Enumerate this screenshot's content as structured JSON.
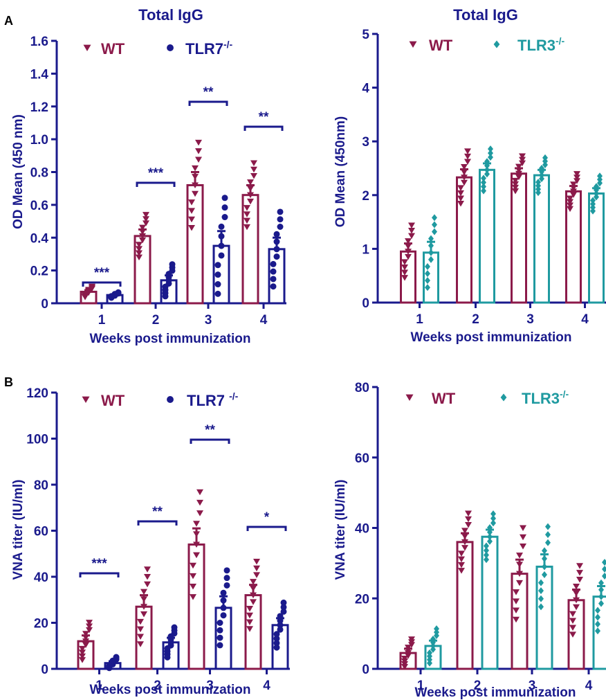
{
  "colors": {
    "axis": "#1a1a8c",
    "wt": "#8b1a4a",
    "tlr7": "#1a1a8c",
    "tlr3": "#1f9aa0"
  },
  "panel_labels": {
    "a": "A",
    "b": "B"
  },
  "chart_data": [
    {
      "type": "bar",
      "id": "a1",
      "title": "Total IgG",
      "xlabel": "Weeks post immunization",
      "ylabel": "OD Mean (450 nm)",
      "categories": [
        "1",
        "2",
        "3",
        "4"
      ],
      "ylim": [
        0,
        1.6
      ],
      "yticks": [
        "0",
        "0.2",
        "0.4",
        "0.6",
        "0.8",
        "1.0",
        "1.2",
        "1.4",
        "1.6"
      ],
      "legend": [
        {
          "label": "WT",
          "sup": "",
          "marker": "triangle"
        },
        {
          "label": "TLR7",
          "sup": "-/-",
          "marker": "circle"
        }
      ],
      "series": [
        {
          "name": "WT",
          "values": [
            0.07,
            0.41,
            0.72,
            0.66
          ],
          "sem": [
            0.01,
            0.04,
            0.08,
            0.06
          ]
        },
        {
          "name": "TLR7-/-",
          "values": [
            0.05,
            0.14,
            0.35,
            0.33
          ],
          "sem": [
            0.005,
            0.03,
            0.09,
            0.07
          ]
        }
      ],
      "significance": [
        "***",
        "***",
        "**",
        "**"
      ]
    },
    {
      "type": "bar",
      "id": "a2",
      "title": "Total IgG",
      "xlabel": "Weeks post immunization",
      "ylabel": "OD Mean (450nm)",
      "categories": [
        "1",
        "2",
        "3",
        "4"
      ],
      "ylim": [
        0,
        5
      ],
      "yticks": [
        "0",
        "1",
        "2",
        "3",
        "4",
        "5"
      ],
      "legend": [
        {
          "label": "WT",
          "sup": "",
          "marker": "triangle"
        },
        {
          "label": "TLR3",
          "sup": "-/-",
          "marker": "diamond"
        }
      ],
      "series": [
        {
          "name": "WT",
          "values": [
            0.95,
            2.33,
            2.4,
            2.07
          ],
          "sem": [
            0.15,
            0.15,
            0.1,
            0.1
          ]
        },
        {
          "name": "TLR3-/-",
          "values": [
            0.93,
            2.47,
            2.37,
            2.03
          ],
          "sem": [
            0.2,
            0.12,
            0.1,
            0.1
          ]
        }
      ],
      "significance": []
    },
    {
      "type": "bar",
      "id": "b1",
      "title": "",
      "xlabel": "Weeks post immunization",
      "ylabel": "VNA titer (IU/ml)",
      "categories": [
        "1",
        "2",
        "3",
        "4"
      ],
      "ylim": [
        0,
        120
      ],
      "yticks": [
        "0",
        "20",
        "40",
        "60",
        "80",
        "100",
        "120"
      ],
      "legend": [
        {
          "label": "WT",
          "sup": "",
          "marker": "triangle"
        },
        {
          "label": "TLR7 ",
          "sup": "-/-",
          "marker": "circle"
        }
      ],
      "series": [
        {
          "name": "WT",
          "values": [
            12,
            27,
            54,
            32
          ],
          "sem": [
            2.5,
            5,
            7,
            4.5
          ]
        },
        {
          "name": "TLR7-/-",
          "values": [
            2.5,
            11.5,
            26.5,
            19
          ],
          "sem": [
            0.8,
            2,
            5,
            3
          ]
        }
      ],
      "significance": [
        "***",
        "**",
        "**",
        "*"
      ]
    },
    {
      "type": "bar",
      "id": "b2",
      "title": "",
      "xlabel": "Weeks post immunization",
      "ylabel": "VNA titer (IU/ml)",
      "categories": [
        "1",
        "2",
        "3",
        "4"
      ],
      "ylim": [
        0,
        80
      ],
      "yticks": [
        "0",
        "20",
        "40",
        "60",
        "80"
      ],
      "legend": [
        {
          "label": "WT",
          "sup": "",
          "marker": "triangle"
        },
        {
          "label": "TLR3",
          "sup": "-/-",
          "marker": "diamond"
        }
      ],
      "series": [
        {
          "name": "WT",
          "values": [
            4.5,
            36,
            27,
            19.5
          ],
          "sem": [
            1.2,
            2.5,
            4,
            3
          ]
        },
        {
          "name": "TLR3-/-",
          "values": [
            6.5,
            37.5,
            29,
            20.5
          ],
          "sem": [
            1.5,
            2,
            3.5,
            3
          ]
        }
      ],
      "significance": []
    }
  ]
}
